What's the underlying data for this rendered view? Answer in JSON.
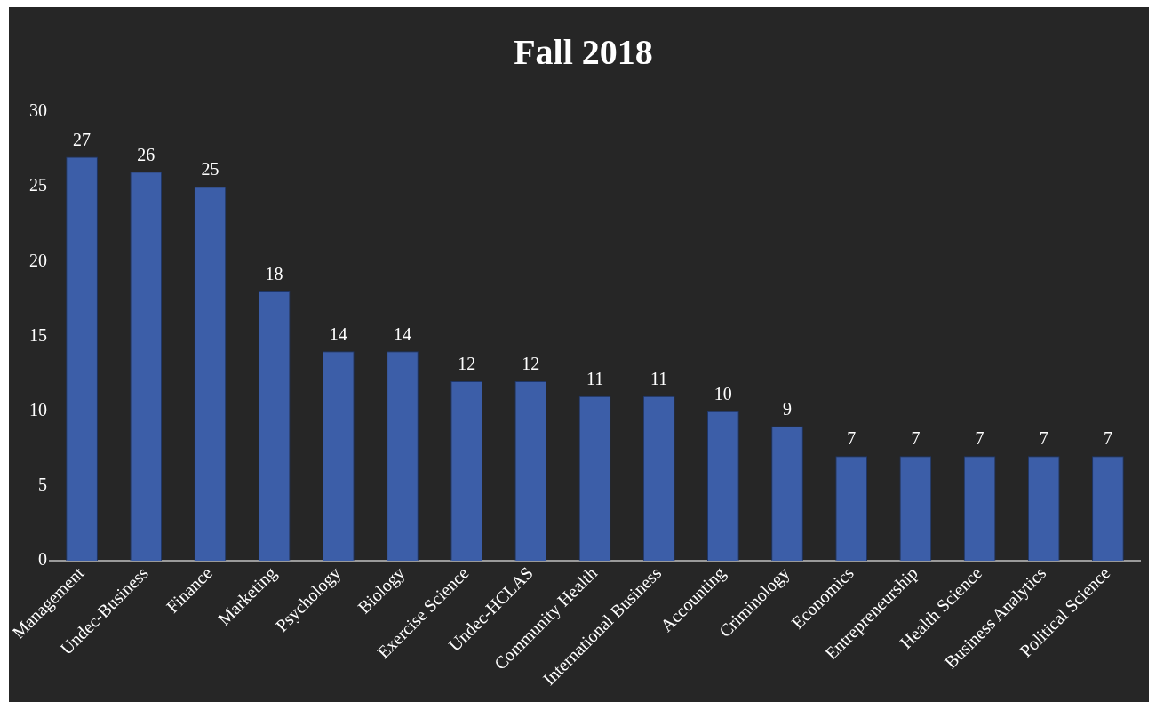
{
  "chart_data": {
    "type": "bar",
    "title": "Fall 2018",
    "categories": [
      "Management",
      "Undec-Business",
      "Finance",
      "Marketing",
      "Psychology",
      "Biology",
      "Exercise Science",
      "Undec-HCLAS",
      "Community Health",
      "International Business",
      "Accounting",
      "Criminology",
      "Economics",
      "Entrepreneurship",
      "Health Science",
      "Business Analytics",
      "Political Science"
    ],
    "values": [
      27,
      26,
      25,
      18,
      14,
      14,
      12,
      12,
      11,
      11,
      10,
      9,
      7,
      7,
      7,
      7,
      7
    ],
    "color": "#3c5ea8",
    "ylim": [
      0,
      30
    ],
    "yticks": [
      0,
      5,
      10,
      15,
      20,
      25,
      30
    ],
    "grid": false,
    "legend": false,
    "data_labels": true
  }
}
